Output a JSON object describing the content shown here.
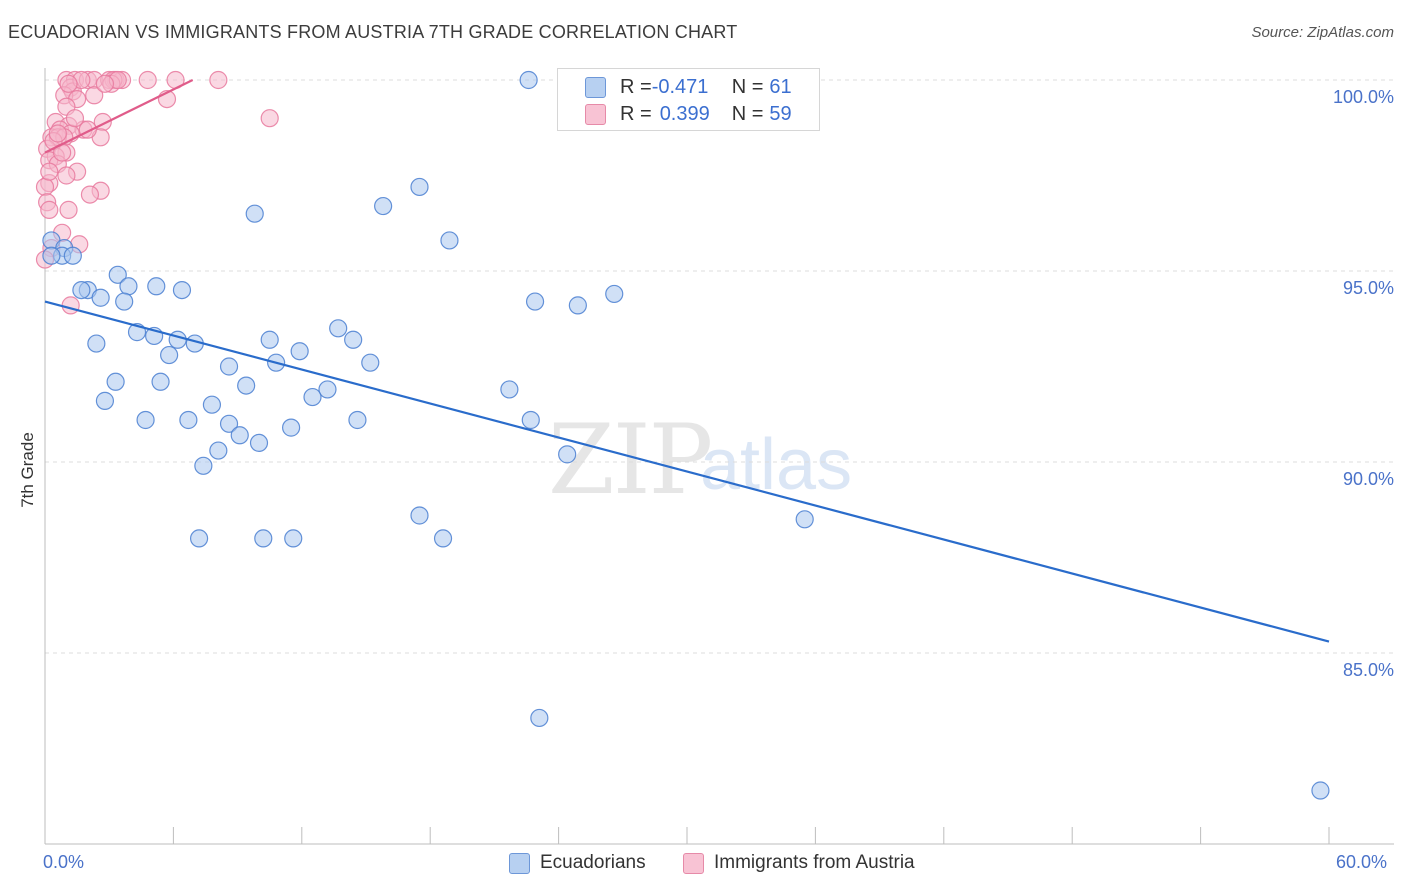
{
  "header": {
    "title": "ECUADORIAN VS IMMIGRANTS FROM AUSTRIA 7TH GRADE CORRELATION CHART",
    "source": "Source: ZipAtlas.com"
  },
  "watermark": {
    "zip": "ZIP",
    "atlas": "atlas"
  },
  "legend": {
    "rows": [
      {
        "r_key": "R = ",
        "r_value": "-0.471",
        "n_key": "N = ",
        "n_value": "61"
      },
      {
        "r_key": "R = ",
        "r_value": "0.399",
        "n_key": "N = ",
        "n_value": "59"
      }
    ]
  },
  "bottom_legend": {
    "ecuadorians": "Ecuadorians",
    "austria": "Immigrants from Austria"
  },
  "colors": {
    "blue_fill": "#a9c7ee",
    "blue_stroke": "#4a7fd1",
    "blue_line": "#2a6ccb",
    "pink_fill": "#f6b8cc",
    "pink_stroke": "#e8799d",
    "pink_line": "#e05c8a",
    "grid": "#dcdcdc"
  },
  "chart_data": {
    "type": "scatter",
    "title": "ECUADORIAN VS IMMIGRANTS FROM AUSTRIA 7TH GRADE CORRELATION CHART",
    "xlabel": "",
    "ylabel": "7th Grade",
    "xlim": [
      0,
      60
    ],
    "ylim": [
      80.5,
      101
    ],
    "x_tick_labels": [
      "0.0%",
      "60.0%"
    ],
    "y_ticks": [
      85,
      90,
      95,
      100
    ],
    "y_tick_labels": [
      "85.0%",
      "90.0%",
      "95.0%",
      "100.0%"
    ],
    "grid": true,
    "legend_position": "top-center",
    "series": [
      {
        "name": "Ecuadorians",
        "points": [
          [
            0.3,
            95.8
          ],
          [
            0.9,
            95.6
          ],
          [
            0.8,
            95.4
          ],
          [
            0.3,
            95.4
          ],
          [
            1.3,
            95.4
          ],
          [
            3.4,
            94.9
          ],
          [
            2.0,
            94.5
          ],
          [
            1.7,
            94.5
          ],
          [
            3.9,
            94.6
          ],
          [
            5.2,
            94.6
          ],
          [
            6.4,
            94.5
          ],
          [
            2.6,
            94.3
          ],
          [
            3.7,
            94.2
          ],
          [
            4.3,
            93.4
          ],
          [
            5.1,
            93.3
          ],
          [
            6.2,
            93.2
          ],
          [
            7.0,
            93.1
          ],
          [
            2.4,
            93.1
          ],
          [
            10.5,
            93.2
          ],
          [
            13.7,
            93.5
          ],
          [
            14.4,
            93.2
          ],
          [
            11.9,
            92.9
          ],
          [
            5.8,
            92.8
          ],
          [
            8.6,
            92.5
          ],
          [
            10.8,
            92.6
          ],
          [
            15.2,
            92.6
          ],
          [
            3.3,
            92.1
          ],
          [
            5.4,
            92.1
          ],
          [
            9.4,
            92.0
          ],
          [
            13.2,
            91.9
          ],
          [
            12.5,
            91.7
          ],
          [
            2.8,
            91.6
          ],
          [
            7.8,
            91.5
          ],
          [
            4.7,
            91.1
          ],
          [
            6.7,
            91.1
          ],
          [
            8.6,
            91.0
          ],
          [
            14.6,
            91.1
          ],
          [
            11.5,
            90.9
          ],
          [
            9.1,
            90.7
          ],
          [
            10.0,
            90.5
          ],
          [
            8.1,
            90.3
          ],
          [
            7.4,
            89.9
          ],
          [
            21.7,
            91.9
          ],
          [
            22.7,
            91.1
          ],
          [
            24.4,
            90.2
          ],
          [
            9.8,
            96.5
          ],
          [
            15.8,
            96.7
          ],
          [
            17.5,
            97.2
          ],
          [
            18.9,
            95.8
          ],
          [
            22.9,
            94.2
          ],
          [
            24.9,
            94.1
          ],
          [
            26.6,
            94.4
          ],
          [
            22.6,
            100.0
          ],
          [
            17.5,
            88.6
          ],
          [
            18.6,
            88.0
          ],
          [
            7.2,
            88.0
          ],
          [
            10.2,
            88.0
          ],
          [
            11.6,
            88.0
          ],
          [
            35.5,
            88.5
          ],
          [
            23.1,
            83.3
          ],
          [
            59.6,
            81.4
          ]
        ],
        "trend": {
          "x": [
            0,
            60
          ],
          "y": [
            94.2,
            85.3
          ]
        }
      },
      {
        "name": "Immigrants from Austria",
        "points": [
          [
            1.0,
            100.0
          ],
          [
            1.4,
            100.0
          ],
          [
            2.0,
            100.0
          ],
          [
            2.3,
            100.0
          ],
          [
            3.0,
            100.0
          ],
          [
            3.3,
            100.0
          ],
          [
            3.6,
            100.0
          ],
          [
            3.2,
            100.0
          ],
          [
            6.1,
            100.0
          ],
          [
            8.1,
            100.0
          ],
          [
            3.1,
            99.9
          ],
          [
            1.2,
            99.8
          ],
          [
            1.3,
            99.7
          ],
          [
            0.9,
            99.6
          ],
          [
            2.3,
            99.6
          ],
          [
            1.5,
            99.5
          ],
          [
            5.7,
            99.5
          ],
          [
            1.0,
            99.3
          ],
          [
            2.7,
            98.9
          ],
          [
            10.5,
            99.0
          ],
          [
            0.5,
            98.9
          ],
          [
            1.1,
            98.8
          ],
          [
            1.8,
            98.7
          ],
          [
            0.7,
            98.7
          ],
          [
            1.2,
            98.6
          ],
          [
            0.3,
            98.5
          ],
          [
            0.6,
            98.5
          ],
          [
            0.9,
            98.5
          ],
          [
            2.6,
            98.5
          ],
          [
            0.1,
            98.2
          ],
          [
            1.0,
            98.1
          ],
          [
            0.5,
            98.0
          ],
          [
            0.2,
            97.9
          ],
          [
            0.6,
            97.8
          ],
          [
            1.5,
            97.6
          ],
          [
            1.0,
            97.5
          ],
          [
            0.2,
            97.3
          ],
          [
            0.0,
            97.2
          ],
          [
            2.6,
            97.1
          ],
          [
            2.1,
            97.0
          ],
          [
            0.1,
            96.8
          ],
          [
            0.2,
            96.6
          ],
          [
            1.1,
            96.6
          ],
          [
            0.8,
            96.0
          ],
          [
            1.6,
            95.7
          ],
          [
            0.3,
            95.6
          ],
          [
            0.0,
            95.3
          ],
          [
            1.2,
            94.1
          ],
          [
            0.4,
            98.4
          ],
          [
            2.0,
            98.7
          ],
          [
            1.7,
            100.0
          ],
          [
            3.4,
            100.0
          ],
          [
            2.8,
            99.9
          ],
          [
            0.8,
            98.1
          ],
          [
            4.8,
            100.0
          ],
          [
            1.4,
            99.0
          ],
          [
            0.6,
            98.6
          ],
          [
            0.2,
            97.6
          ],
          [
            1.1,
            99.9
          ]
        ],
        "trend": {
          "x": [
            0,
            6.9
          ],
          "y": [
            98.1,
            100.0
          ]
        }
      }
    ]
  }
}
